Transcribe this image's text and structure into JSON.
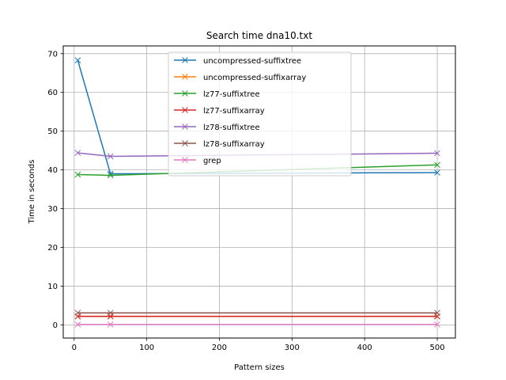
{
  "chart_data": {
    "type": "line",
    "title": "Search time dna10.txt",
    "xlabel": "Pattern sizes",
    "ylabel": "Time in seconds",
    "xlim": [
      -15,
      525
    ],
    "ylim": [
      -3.4,
      72
    ],
    "xticks": [
      0,
      100,
      200,
      300,
      400,
      500
    ],
    "yticks": [
      0,
      10,
      20,
      30,
      40,
      50,
      60,
      70
    ],
    "grid": true,
    "legend_position": "top-center",
    "marker": "x",
    "x": [
      5,
      50,
      500
    ],
    "series": [
      {
        "name": "uncompressed-suffixtree",
        "color": "#1f77b4",
        "values": [
          68.3,
          39.0,
          39.3
        ]
      },
      {
        "name": "uncompressed-suffixarray",
        "color": "#ff7f0e",
        "values": [
          2.2,
          2.2,
          2.2
        ]
      },
      {
        "name": "lz77-suffixtree",
        "color": "#2ca02c",
        "values": [
          38.8,
          38.6,
          41.3
        ]
      },
      {
        "name": "lz77-suffixarray",
        "color": "#d62728",
        "values": [
          2.2,
          2.2,
          2.2
        ]
      },
      {
        "name": "lz78-suffixtree",
        "color": "#9467bd",
        "values": [
          44.4,
          43.5,
          44.3
        ]
      },
      {
        "name": "lz78-suffixarray",
        "color": "#8c564b",
        "values": [
          3.1,
          3.1,
          3.1
        ]
      },
      {
        "name": "grep",
        "color": "#e377c2",
        "values": [
          0.1,
          0.1,
          0.1
        ]
      }
    ]
  }
}
